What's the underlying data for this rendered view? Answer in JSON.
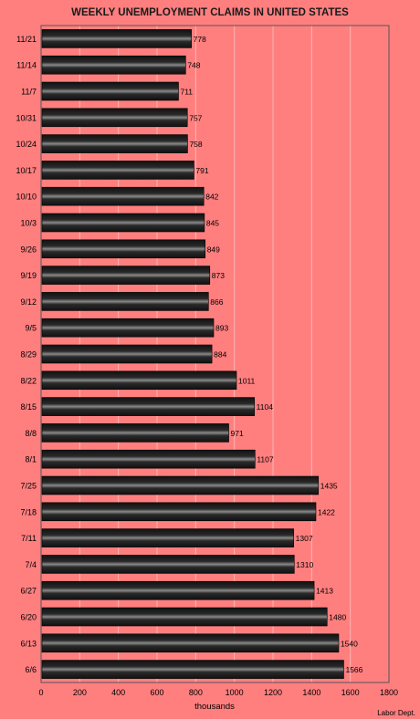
{
  "chart_data": {
    "type": "bar",
    "orientation": "horizontal",
    "title": "WEEKLY UNEMPLOYMENT CLAIMS IN UNITED STATES",
    "xlabel": "thousands",
    "ylabel": "",
    "source": "Labor Dept.",
    "categories": [
      "11/21",
      "11/14",
      "11/7",
      "10/31",
      "10/24",
      "10/17",
      "10/10",
      "10/3",
      "9/26",
      "9/19",
      "9/12",
      "9/5",
      "8/29",
      "8/22",
      "8/15",
      "8/8",
      "8/1",
      "7/25",
      "7/18",
      "7/11",
      "7/4",
      "6/27",
      "6/20",
      "6/13",
      "6/6"
    ],
    "values": [
      778,
      748,
      711,
      757,
      758,
      791,
      842,
      845,
      849,
      873,
      866,
      893,
      884,
      1011,
      1104,
      971,
      1107,
      1435,
      1422,
      1307,
      1310,
      1413,
      1480,
      1540,
      1566
    ],
    "xlim": [
      0,
      1800
    ],
    "xticks": [
      0,
      200,
      400,
      600,
      800,
      1000,
      1200,
      1400,
      1600,
      1800
    ],
    "grid": true,
    "colors": {
      "background": "#ff7f7f",
      "bar": "#1a1a1a",
      "bar_highlight": "#8a8a8a",
      "grid": "#ffb3b3",
      "text": "#000000"
    }
  }
}
